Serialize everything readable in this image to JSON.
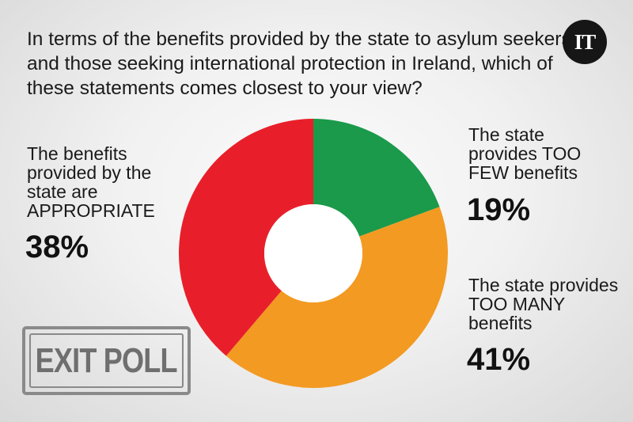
{
  "question": "In terms of the benefits provided by the state to asylum seekers and those seeking international protection in Ireland, which of these statements comes closest to your view?",
  "logo": "IT",
  "stamp": "EXIT POLL",
  "chart_data": {
    "type": "pie",
    "donut": true,
    "categories": [
      "The state provides TOO FEW benefits",
      "The state provides TOO MANY benefits",
      "The benefits provided by the state are APPROPRIATE"
    ],
    "values": [
      19,
      41,
      38
    ],
    "value_labels": [
      "19%",
      "41%",
      "38%"
    ],
    "colors": [
      "#1a9a4a",
      "#f39a22",
      "#e81f2a"
    ],
    "start": "top, clockwise"
  }
}
